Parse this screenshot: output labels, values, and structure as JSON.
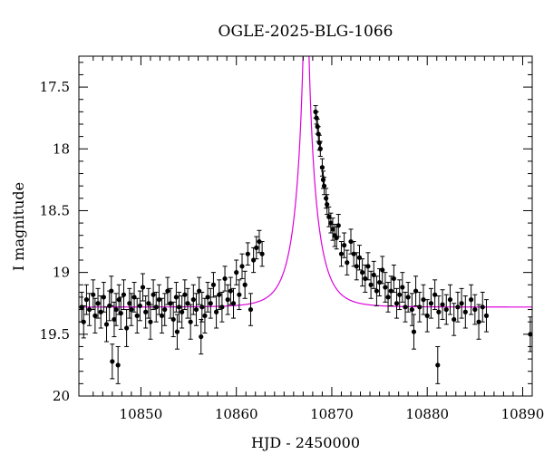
{
  "chart_data": {
    "type": "scatter",
    "title": "OGLE-2025-BLG-1066",
    "xlabel": "HJD - 2450000",
    "ylabel": "I magnitude",
    "xlim": [
      10843.5,
      10891
    ],
    "ylim": [
      20,
      17.25
    ],
    "y_inverted": true,
    "x_ticks": [
      10850,
      10860,
      10870,
      10880,
      10890
    ],
    "x_tick_labels": [
      "10850",
      "10860",
      "10870",
      "10880",
      "10890"
    ],
    "y_ticks": [
      17.5,
      18,
      18.5,
      19,
      19.5,
      20
    ],
    "y_tick_labels": [
      "17.5",
      "18",
      "18.5",
      "19",
      "19.5",
      "20"
    ],
    "grid": false,
    "colors": {
      "data": "#000000",
      "model": "#dd00dd"
    },
    "series": [
      {
        "kind": "points_with_errorbars",
        "x": [
          10843.8,
          10844.0,
          10844.3,
          10844.6,
          10845.0,
          10845.2,
          10845.5,
          10845.8,
          10846.1,
          10846.4,
          10846.7,
          10846.9,
          10847.2,
          10847.4,
          10847.7,
          10847.9,
          10848.2,
          10848.5,
          10848.8,
          10849.0,
          10849.3,
          10849.6,
          10849.9,
          10850.2,
          10850.5,
          10850.8,
          10851.0,
          10851.3,
          10851.6,
          10851.9,
          10852.2,
          10852.5,
          10852.8,
          10853.1,
          10853.4,
          10853.7,
          10854.0,
          10854.3,
          10854.6,
          10854.9,
          10855.2,
          10855.5,
          10855.8,
          10856.1,
          10856.4,
          10856.7,
          10857.0,
          10857.3,
          10857.6,
          10857.9,
          10858.2,
          10858.5,
          10858.8,
          10859.1,
          10859.4,
          10859.7,
          10860.0,
          10860.3,
          10860.6,
          10860.9,
          10861.2,
          10861.5,
          10861.8,
          10862.1,
          10862.4,
          10862.7,
          10847.0,
          10847.6,
          10853.8,
          10856.3
        ],
        "y": [
          19.28,
          19.4,
          19.22,
          19.3,
          19.18,
          19.35,
          19.25,
          19.32,
          19.2,
          19.42,
          19.27,
          19.15,
          19.38,
          19.3,
          19.22,
          19.33,
          19.18,
          19.45,
          19.25,
          19.3,
          19.2,
          19.35,
          19.27,
          19.12,
          19.32,
          19.25,
          19.4,
          19.18,
          19.28,
          19.22,
          19.35,
          19.3,
          19.15,
          19.25,
          19.38,
          19.2,
          19.28,
          19.32,
          19.18,
          19.25,
          19.4,
          19.22,
          19.3,
          19.15,
          19.28,
          19.35,
          19.2,
          19.25,
          19.1,
          19.32,
          19.18,
          19.28,
          19.05,
          19.22,
          19.15,
          19.25,
          19.0,
          19.18,
          18.95,
          19.1,
          18.85,
          19.3,
          18.9,
          18.8,
          18.75,
          18.85,
          19.72,
          19.75,
          19.48,
          19.52
        ],
        "yerr": [
          0.12,
          0.13,
          0.12,
          0.13,
          0.12,
          0.14,
          0.12,
          0.13,
          0.12,
          0.14,
          0.12,
          0.12,
          0.14,
          0.13,
          0.12,
          0.13,
          0.12,
          0.15,
          0.12,
          0.13,
          0.12,
          0.14,
          0.12,
          0.11,
          0.13,
          0.12,
          0.14,
          0.12,
          0.12,
          0.12,
          0.14,
          0.13,
          0.11,
          0.12,
          0.14,
          0.12,
          0.12,
          0.13,
          0.12,
          0.12,
          0.14,
          0.12,
          0.13,
          0.11,
          0.12,
          0.14,
          0.12,
          0.12,
          0.1,
          0.13,
          0.12,
          0.12,
          0.1,
          0.12,
          0.11,
          0.12,
          0.1,
          0.12,
          0.1,
          0.11,
          0.09,
          0.13,
          0.1,
          0.09,
          0.09,
          0.1,
          0.14,
          0.15,
          0.14,
          0.14
        ]
      },
      {
        "kind": "points_with_errorbars",
        "x": [
          10868.3,
          10868.4,
          10868.5,
          10868.6,
          10868.7,
          10868.8,
          10869.0,
          10869.1,
          10869.2,
          10869.4,
          10869.5,
          10869.7,
          10869.9,
          10870.1,
          10870.3,
          10870.5,
          10870.7,
          10871.0,
          10871.3,
          10871.6,
          10872.0,
          10872.3,
          10872.6,
          10872.9,
          10873.2,
          10873.5,
          10873.8,
          10874.1,
          10874.4,
          10874.7,
          10875.0,
          10875.3,
          10875.6,
          10875.9,
          10876.2,
          10876.5,
          10876.8,
          10877.1,
          10877.4,
          10877.7,
          10878.0,
          10878.4,
          10878.8,
          10879.2,
          10879.6,
          10880.0,
          10880.4,
          10880.8,
          10881.2,
          10881.6,
          10882.0,
          10882.4,
          10882.8,
          10883.2,
          10883.6,
          10884.0,
          10884.6,
          10885.0,
          10885.4,
          10885.8,
          10886.2,
          10890.8,
          10878.6,
          10881.1
        ],
        "y": [
          17.7,
          17.75,
          17.82,
          17.88,
          17.95,
          18.0,
          18.15,
          18.25,
          18.3,
          18.4,
          18.45,
          18.55,
          18.6,
          18.65,
          18.7,
          18.72,
          18.62,
          18.85,
          18.78,
          18.92,
          18.75,
          18.85,
          18.95,
          18.88,
          19.0,
          19.05,
          18.95,
          19.1,
          19.02,
          19.15,
          19.08,
          18.98,
          19.12,
          19.2,
          19.15,
          19.05,
          19.25,
          19.18,
          19.12,
          19.28,
          19.2,
          19.3,
          19.15,
          19.28,
          19.22,
          19.35,
          19.25,
          19.18,
          19.32,
          19.26,
          19.3,
          19.22,
          19.38,
          19.28,
          19.25,
          19.32,
          19.22,
          19.3,
          19.4,
          19.28,
          19.35,
          19.5,
          19.48,
          19.75
        ],
        "yerr": [
          0.05,
          0.05,
          0.06,
          0.06,
          0.06,
          0.06,
          0.07,
          0.07,
          0.07,
          0.08,
          0.08,
          0.08,
          0.08,
          0.09,
          0.09,
          0.09,
          0.09,
          0.1,
          0.1,
          0.1,
          0.1,
          0.1,
          0.11,
          0.1,
          0.11,
          0.11,
          0.11,
          0.11,
          0.11,
          0.12,
          0.11,
          0.11,
          0.12,
          0.12,
          0.12,
          0.11,
          0.12,
          0.12,
          0.12,
          0.12,
          0.12,
          0.13,
          0.12,
          0.12,
          0.12,
          0.13,
          0.12,
          0.12,
          0.13,
          0.12,
          0.12,
          0.12,
          0.13,
          0.12,
          0.12,
          0.13,
          0.12,
          0.12,
          0.14,
          0.12,
          0.13,
          0.14,
          0.14,
          0.15
        ]
      },
      {
        "kind": "model_curve",
        "t0": 10867.3,
        "tE": 2.2,
        "u0": 0.06,
        "baseline_mag": 19.28
      }
    ]
  }
}
